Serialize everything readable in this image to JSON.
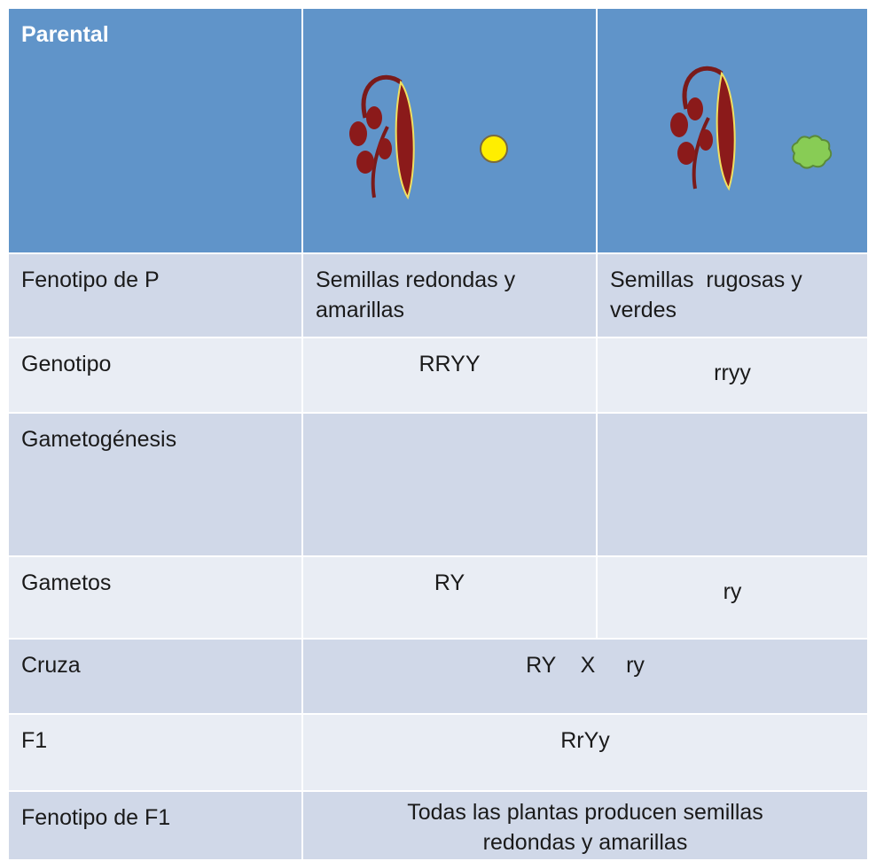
{
  "table": {
    "header": [
      "Parental"
    ],
    "rows": [
      [
        "Fenotipo de P",
        "Semillas redondas y amarillas",
        "Semillas  rugosas y verdes"
      ],
      [
        "Genotipo",
        "RRYY",
        "rryy"
      ],
      [
        "Gametogénesis"
      ],
      [
        "Gametos",
        "RY",
        "ry"
      ],
      [
        "Cruza",
        "RY    X     ry"
      ],
      [
        "F1",
        "RrYy"
      ],
      [
        "Fenotipo de F1",
        "Todas las plantas producen semillas redondas y amarillas"
      ]
    ]
  }
}
